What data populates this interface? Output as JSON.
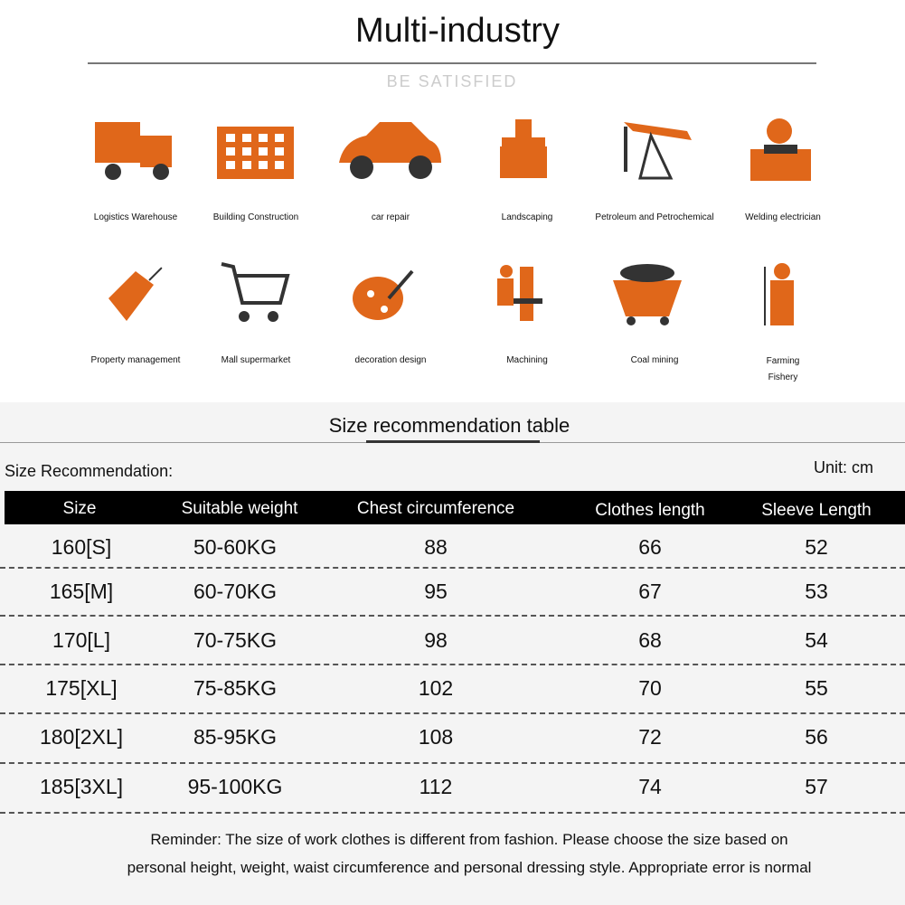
{
  "header": {
    "title": "Multi-industry",
    "subtitle": "BE SATISFIED"
  },
  "industries": [
    "Logistics Warehouse",
    "Building Construction",
    "car repair",
    "Landscaping",
    "Petroleum and Petrochemical",
    "Welding electrician",
    "Property management",
    "Mall supermarket",
    "decoration design",
    "Machining",
    "Coal mining",
    "Farming Fishery"
  ],
  "size_section": {
    "title": "Size recommendation table",
    "label": "Size Recommendation:",
    "unit": "Unit: cm"
  },
  "table": {
    "columns": [
      "Size",
      "Suitable weight",
      "Chest circumference",
      "Clothes length",
      "Sleeve Length"
    ],
    "rows": [
      [
        "160[S]",
        "50-60KG",
        "88",
        "66",
        "52"
      ],
      [
        "165[M]",
        "60-70KG",
        "95",
        "67",
        "53"
      ],
      [
        "170[L]",
        "70-75KG",
        "98",
        "68",
        "54"
      ],
      [
        "175[XL]",
        "75-85KG",
        "102",
        "70",
        "55"
      ],
      [
        "180[2XL]",
        "85-95KG",
        "108",
        "72",
        "56"
      ],
      [
        "185[3XL]",
        "95-100KG",
        "112",
        "74",
        "57"
      ]
    ]
  },
  "reminder": [
    "Reminder: The size of work clothes is different from fashion. Please choose the size based on",
    "personal height, weight, waist circumference and personal dressing style. Appropriate error is normal"
  ]
}
